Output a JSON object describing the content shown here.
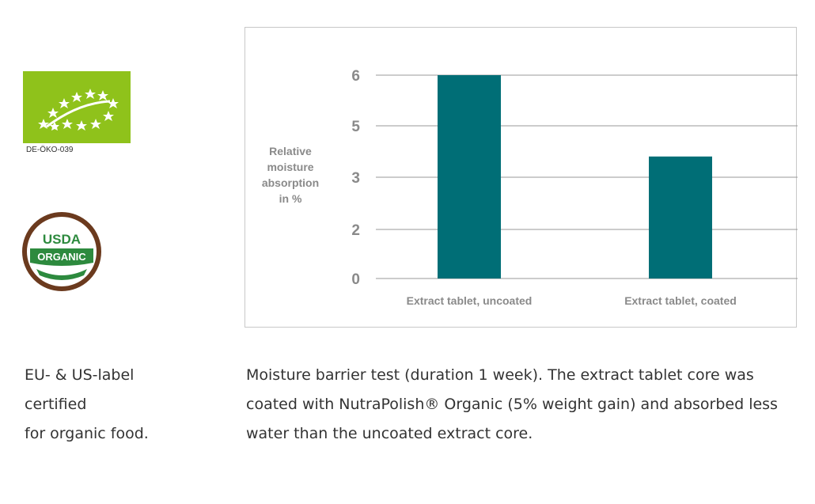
{
  "logos": {
    "eu_code": "DE-ÖKO-039",
    "usda_top": "USDA",
    "usda_bottom": "ORGANIC",
    "eu_color": "#8fc21b",
    "usda_ring_color": "#6b3a1e",
    "usda_green": "#2d8a3e"
  },
  "left_caption": "EU- & US-label\ncertified\nfor organic food.",
  "caption": "Moisture barrier test (duration 1 week). The extract tablet core was coated with NutraPolish® Organic (5% weight gain) and absorbed less water than the uncoated extract core.",
  "chart_data": {
    "type": "bar",
    "categories": [
      "Extract tablet, uncoated",
      "Extract tablet, coated"
    ],
    "values": [
      6,
      3.6
    ],
    "yticks": [
      "0",
      "2",
      "3",
      "5",
      "6"
    ],
    "ylabel": "Relative\nmoisture\nabsorption\nin %",
    "ylim": [
      0,
      6
    ],
    "grid": true,
    "bar_color": "#006e76"
  }
}
